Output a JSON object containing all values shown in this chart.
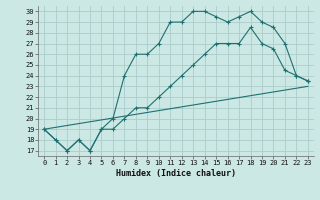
{
  "xlabel": "Humidex (Indice chaleur)",
  "bg_color": "#cce8e4",
  "grid_color": "#aaccca",
  "line_color": "#1e7070",
  "xlim": [
    -0.5,
    23.5
  ],
  "ylim": [
    16.5,
    30.5
  ],
  "xticks": [
    0,
    1,
    2,
    3,
    4,
    5,
    6,
    7,
    8,
    9,
    10,
    11,
    12,
    13,
    14,
    15,
    16,
    17,
    18,
    19,
    20,
    21,
    22,
    23
  ],
  "yticks": [
    17,
    18,
    19,
    20,
    21,
    22,
    23,
    24,
    25,
    26,
    27,
    28,
    29,
    30
  ],
  "curve1_x": [
    0,
    1,
    2,
    3,
    4,
    5,
    6,
    7,
    8,
    9,
    10,
    11,
    12,
    13,
    14,
    15,
    16,
    17,
    18,
    19,
    20,
    21,
    22,
    23
  ],
  "curve1_y": [
    19,
    18,
    17,
    18,
    17,
    19,
    20,
    24,
    26,
    26,
    27,
    29,
    29,
    30,
    30,
    29.5,
    29,
    29.5,
    30,
    29,
    28.5,
    27,
    24,
    23.5
  ],
  "curve2_x": [
    0,
    1,
    2,
    3,
    4,
    5,
    6,
    7,
    8,
    9,
    10,
    11,
    12,
    13,
    14,
    15,
    16,
    17,
    18,
    19,
    20,
    21,
    22,
    23
  ],
  "curve2_y": [
    19,
    18,
    17,
    18,
    17,
    19,
    19,
    20,
    21,
    21,
    22,
    23,
    24,
    25,
    26,
    27,
    27,
    27,
    28.5,
    27,
    26.5,
    24.5,
    24,
    23.5
  ],
  "curve3_x": [
    0,
    23
  ],
  "curve3_y": [
    19,
    23
  ]
}
